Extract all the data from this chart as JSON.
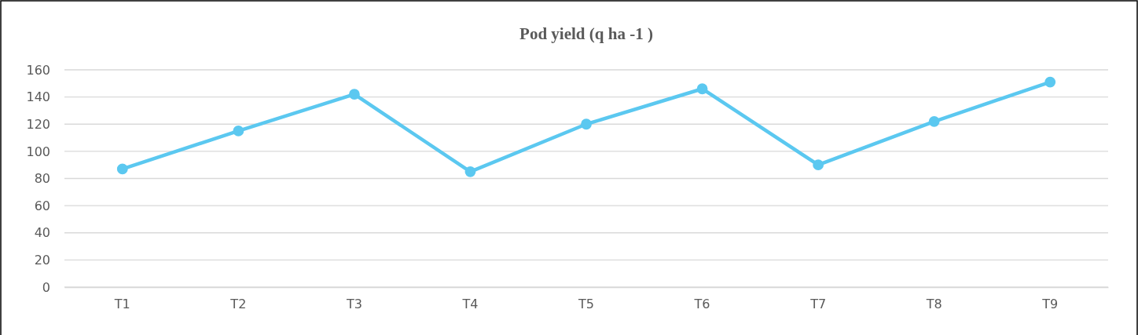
{
  "chart_data": {
    "type": "line",
    "title": "Pod yield (q ha -1 )",
    "categories": [
      "T1",
      "T2",
      "T3",
      "T4",
      "T5",
      "T6",
      "T7",
      "T8",
      "T9"
    ],
    "series": [
      {
        "color": "#5bc8f0",
        "values": [
          87,
          115,
          142,
          85,
          120,
          146,
          90,
          122,
          151
        ]
      }
    ],
    "ylim": [
      0,
      160
    ],
    "yticks": [
      0,
      20,
      40,
      60,
      80,
      100,
      120,
      140,
      160
    ],
    "grid": "y",
    "marker": "circle",
    "line_style": "solid"
  }
}
